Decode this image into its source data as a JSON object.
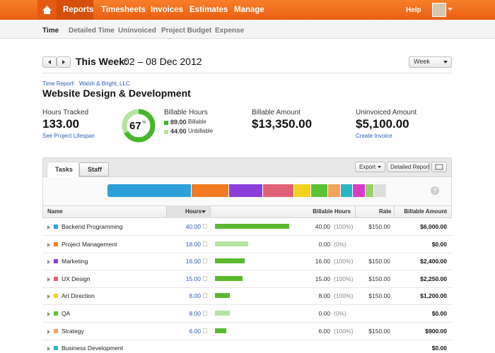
{
  "nav": {
    "items": [
      "Reports",
      "Timesheets",
      "Invoices",
      "Estimates",
      "Manage"
    ],
    "help": "Help"
  },
  "subnav": [
    "Time",
    "Detailed Time",
    "Uninvoiced",
    "Project Budget",
    "Expense"
  ],
  "period": {
    "label": "This Week:",
    "range": "02 – 08 Dec 2012",
    "select": "Week"
  },
  "breadcrumb": [
    "Time Report",
    "Walsh & Bright, LLC"
  ],
  "project": "Website Design & Development",
  "stats": {
    "hours_label": "Hours Tracked",
    "hours": "133.00",
    "lifespan": "See Project Lifespan",
    "percent": 67,
    "percent_unit": "%",
    "billable_label": "Billable Hours",
    "billable": "89.00",
    "billable_word": "Billable",
    "unbillable": "44.00",
    "unbillable_word": "Unbillable",
    "amount_label": "Billable Amount",
    "amount": "$13,350.00",
    "uninvoiced_label": "Uninvoiced Amount",
    "uninvoiced": "$5,100.00",
    "create": "Create Invoice"
  },
  "tabs": [
    "Tasks",
    "Staff"
  ],
  "buttons": [
    "Export",
    "Detailed Report"
  ],
  "columns": [
    "Name",
    "Hours",
    "Billable Hours",
    "Rate",
    "Billable Amount"
  ],
  "rows": [
    {
      "name": "Backend Programming",
      "color": "#2d9fd9",
      "hours": 40,
      "hours_label": "40.00",
      "billable": 40,
      "billable_label": "40.00",
      "pct": "(100%)",
      "rate": "$150.00",
      "amount": "$6,000.00"
    },
    {
      "name": "Project Management",
      "color": "#f07b22",
      "hours": 18,
      "hours_label": "18.00",
      "billable": 0,
      "billable_label": "0.00",
      "pct": "(0%)",
      "rate": null,
      "amount": "$0.00"
    },
    {
      "name": "Marketing",
      "color": "#8b3fd9",
      "hours": 16,
      "hours_label": "16.00",
      "billable": 16,
      "billable_label": "16.00",
      "pct": "(100%)",
      "rate": "$150.00",
      "amount": "$2,400.00"
    },
    {
      "name": "UX Design",
      "color": "#e0607a",
      "hours": 15,
      "hours_label": "15.00",
      "billable": 15,
      "billable_label": "15.00",
      "pct": "(100%)",
      "rate": "$150.00",
      "amount": "$2,250.00"
    },
    {
      "name": "Art Direction",
      "color": "#f2d21f",
      "hours": 8,
      "hours_label": "8.00",
      "billable": 8,
      "billable_label": "8.00",
      "pct": "(100%)",
      "rate": "$150.00",
      "amount": "$1,200.00"
    },
    {
      "name": "QA",
      "color": "#5bc236",
      "hours": 8,
      "hours_label": "8.00",
      "billable": 0,
      "billable_label": "0.00",
      "pct": "(0%)",
      "rate": null,
      "amount": "$0.00"
    },
    {
      "name": "Strategy",
      "color": "#f4a35a",
      "hours": 6,
      "hours_label": "6.00",
      "billable": 6,
      "billable_label": "6.00",
      "pct": "(100%)",
      "rate": "$150.00",
      "amount": "$900.00"
    },
    {
      "name": "Business Development",
      "color": "#29b6c4",
      "hours": null,
      "hours_label": null,
      "billable": null,
      "billable_label": null,
      "pct": null,
      "rate": null,
      "amount": "$0.00"
    }
  ],
  "more_segments": [
    {
      "color": "#29b6c4",
      "hours": 6
    },
    {
      "color": "#d63cc4",
      "hours": 6
    },
    {
      "color": "#9ad16a",
      "hours": 4
    },
    {
      "color": "#dddddd",
      "hours": 6
    }
  ]
}
